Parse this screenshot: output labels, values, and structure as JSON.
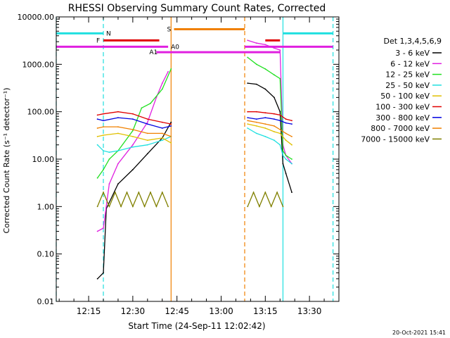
{
  "chart_data": {
    "type": "line",
    "title": "RHESSI Observing Summary Count Rates, Corrected",
    "ylabel": "Corrected Count Rate (s⁻¹ detector⁻¹)",
    "xlabel": "Start Time (24-Sep-11 12:02:42)",
    "footer": "20-Oct-2021 15:41",
    "yscale": "log",
    "ylim": [
      0.01,
      10000
    ],
    "y_ticks": [
      "0.01",
      "0.10",
      "1.00",
      "10.00",
      "100.00",
      "1000.00",
      "10000.00"
    ],
    "xlim": [
      "12:04",
      "13:40"
    ],
    "x_ticks": [
      "12:15",
      "12:30",
      "12:45",
      "13:00",
      "13:15",
      "13:30"
    ],
    "legend": {
      "placement": "right",
      "title": "Det 1,3,4,5,6,9",
      "entries": [
        {
          "label": "3 - 6 keV",
          "color": "#000000"
        },
        {
          "label": "6 - 12 keV",
          "color": "#e020e0"
        },
        {
          "label": "12 - 25 keV",
          "color": "#20e020"
        },
        {
          "label": "25 - 50 keV",
          "color": "#20e0e0"
        },
        {
          "label": "50 - 100 keV",
          "color": "#e0c000"
        },
        {
          "label": "100 - 300 keV",
          "color": "#e00000"
        },
        {
          "label": "300 - 800 keV",
          "color": "#0000e0"
        },
        {
          "label": "800 - 7000 keV",
          "color": "#f08000"
        },
        {
          "label": "7000 - 15000 keV",
          "color": "#808000"
        }
      ]
    },
    "flag_bars": [
      {
        "label": "N",
        "color": "#20e0e0",
        "y": 4500,
        "segments": [
          [
            "12:04",
            "12:20"
          ],
          [
            "13:21",
            "13:38"
          ]
        ]
      },
      {
        "label": "F",
        "color": "#e00000",
        "y": 3200,
        "segments": [
          [
            "12:20",
            "12:39"
          ],
          [
            "13:15",
            "13:20"
          ]
        ]
      },
      {
        "label": "S",
        "color": "#f08000",
        "y": 5500,
        "segments": [
          [
            "12:44",
            "13:08"
          ]
        ]
      },
      {
        "label": "A0",
        "color": "#e020e0",
        "y": 2350,
        "segments": [
          [
            "12:04",
            "12:42"
          ],
          [
            "13:08",
            "13:38"
          ]
        ]
      },
      {
        "label": "A1",
        "color": "#e020e0",
        "y": 1800,
        "segments": [
          [
            "12:38",
            "13:20"
          ]
        ]
      }
    ],
    "vlines": [
      {
        "t": "12:04",
        "color": "#20e0e0",
        "style": "dashed"
      },
      {
        "t": "12:20",
        "color": "#20e0e0",
        "style": "dashed"
      },
      {
        "t": "12:43",
        "color": "#f08000",
        "style": "solid"
      },
      {
        "t": "13:08",
        "color": "#f08000",
        "style": "dashed"
      },
      {
        "t": "13:21",
        "color": "#20e0e0",
        "style": "solid"
      },
      {
        "t": "13:38",
        "color": "#20e0e0",
        "style": "dashed"
      }
    ],
    "series": [
      {
        "name": "3 - 6 keV",
        "color": "#000000",
        "segments": [
          {
            "t": [
              "12:18",
              "12:20",
              "12:21",
              "12:25",
              "12:30",
              "12:35",
              "12:40",
              "12:43"
            ],
            "y": [
              0.03,
              0.04,
              0.9,
              3,
              6,
              13,
              28,
              60
            ]
          },
          {
            "t": [
              "13:09",
              "13:12",
              "13:15",
              "13:18",
              "13:20",
              "13:21",
              "13:22",
              "13:24"
            ],
            "y": [
              400,
              380,
              300,
              200,
              100,
              8,
              5,
              2
            ]
          }
        ]
      },
      {
        "name": "6 - 12 keV",
        "color": "#e020e0",
        "segments": [
          {
            "t": [
              "12:18",
              "12:20",
              "12:22",
              "12:25",
              "12:30",
              "12:35",
              "12:38",
              "12:40",
              "12:42"
            ],
            "y": [
              0.3,
              0.35,
              3,
              8,
              20,
              60,
              200,
              400,
              700
            ]
          },
          {
            "t": [
              "13:09",
              "13:12",
              "13:15",
              "13:18",
              "13:20",
              "13:21",
              "13:22",
              "13:24"
            ],
            "y": [
              3200,
              2800,
              2600,
              2200,
              2000,
              20,
              12,
              8
            ]
          }
        ]
      },
      {
        "name": "12 - 25 keV",
        "color": "#20e020",
        "segments": [
          {
            "t": [
              "12:18",
              "12:20",
              "12:22",
              "12:25",
              "12:30",
              "12:33",
              "12:36",
              "12:40",
              "12:43"
            ],
            "y": [
              4,
              6,
              10,
              15,
              40,
              120,
              150,
              300,
              800
            ]
          },
          {
            "t": [
              "13:09",
              "13:12",
              "13:15",
              "13:18",
              "13:20",
              "13:21",
              "13:22",
              "13:24"
            ],
            "y": [
              1400,
              1000,
              800,
              600,
              500,
              15,
              12,
              10
            ]
          }
        ]
      },
      {
        "name": "25 - 50 keV",
        "color": "#20e0e0",
        "segments": [
          {
            "t": [
              "12:18",
              "12:20",
              "12:22",
              "12:25",
              "12:30",
              "12:35",
              "12:40",
              "12:43"
            ],
            "y": [
              20,
              15,
              14,
              15,
              18,
              20,
              25,
              30
            ]
          },
          {
            "t": [
              "13:09",
              "13:12",
              "13:15",
              "13:18",
              "13:20",
              "13:21",
              "13:22",
              "13:24"
            ],
            "y": [
              45,
              35,
              30,
              25,
              20,
              12,
              10,
              8
            ]
          }
        ]
      },
      {
        "name": "50 - 100 keV",
        "color": "#e0c000",
        "segments": [
          {
            "t": [
              "12:18",
              "12:20",
              "12:25",
              "12:30",
              "12:35",
              "12:40",
              "12:43"
            ],
            "y": [
              30,
              32,
              35,
              30,
              25,
              28,
              22
            ]
          },
          {
            "t": [
              "13:09",
              "13:12",
              "13:15",
              "13:18",
              "13:20",
              "13:22",
              "13:24"
            ],
            "y": [
              55,
              50,
              45,
              38,
              35,
              25,
              20
            ]
          }
        ]
      },
      {
        "name": "100 - 300 keV",
        "color": "#e00000",
        "segments": [
          {
            "t": [
              "12:18",
              "12:20",
              "12:25",
              "12:30",
              "12:35",
              "12:40",
              "12:43"
            ],
            "y": [
              85,
              90,
              100,
              90,
              70,
              60,
              55
            ]
          },
          {
            "t": [
              "13:09",
              "13:12",
              "13:15",
              "13:18",
              "13:20",
              "13:22",
              "13:24"
            ],
            "y": [
              100,
              100,
              95,
              90,
              85,
              70,
              65
            ]
          }
        ]
      },
      {
        "name": "300 - 800 keV",
        "color": "#0000e0",
        "segments": [
          {
            "t": [
              "12:18",
              "12:20",
              "12:25",
              "12:30",
              "12:35",
              "12:40",
              "12:43"
            ],
            "y": [
              70,
              65,
              75,
              70,
              55,
              45,
              50
            ]
          },
          {
            "t": [
              "13:09",
              "13:12",
              "13:15",
              "13:18",
              "13:20",
              "13:22",
              "13:24"
            ],
            "y": [
              75,
              70,
              75,
              70,
              65,
              58,
              55
            ]
          }
        ]
      },
      {
        "name": "800 - 7000 keV",
        "color": "#f08000",
        "segments": [
          {
            "t": [
              "12:18",
              "12:20",
              "12:25",
              "12:30",
              "12:35",
              "12:40",
              "12:43"
            ],
            "y": [
              45,
              48,
              48,
              42,
              35,
              35,
              30
            ]
          },
          {
            "t": [
              "13:09",
              "13:12",
              "13:15",
              "13:18",
              "13:20",
              "13:22",
              "13:24"
            ],
            "y": [
              65,
              60,
              55,
              50,
              42,
              35,
              30
            ]
          }
        ]
      },
      {
        "name": "7000 - 15000 keV",
        "color": "#808000",
        "segments": [
          {
            "t": [
              "12:18",
              "12:20",
              "12:22",
              "12:24",
              "12:26",
              "12:28",
              "12:30",
              "12:32",
              "12:34",
              "12:36",
              "12:38",
              "12:40",
              "12:42"
            ],
            "y": [
              1.0,
              2.0,
              1.0,
              2.0,
              1.0,
              2.0,
              1.0,
              2.0,
              1.0,
              2.0,
              1.0,
              2.0,
              1.0
            ]
          },
          {
            "t": [
              "13:09",
              "13:11",
              "13:13",
              "13:15",
              "13:17",
              "13:19",
              "13:21"
            ],
            "y": [
              1.0,
              2.0,
              1.0,
              2.0,
              1.0,
              2.0,
              1.0
            ]
          }
        ]
      }
    ]
  }
}
